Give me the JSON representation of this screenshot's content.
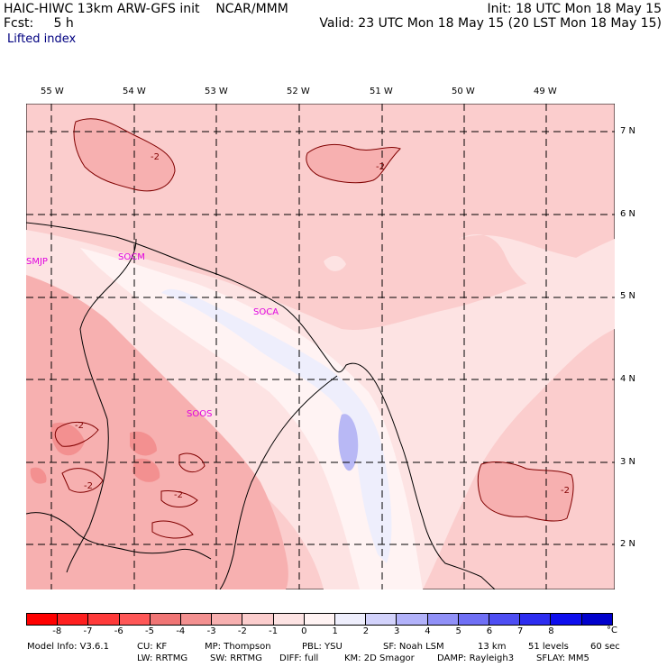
{
  "header": {
    "model": "HAIC-HIWC 13km ARW-GFS init",
    "org": "NCAR/MMM",
    "forecast_label": "Fcst:",
    "forecast_value": "5 h",
    "init": "Init: 18 UTC Mon 18 May 15",
    "valid": "Valid: 23 UTC Mon 18 May 15 (20 LST Mon 18 May 15)",
    "field": "Lifted index"
  },
  "map": {
    "lon_labels": [
      "55 W",
      "54 W",
      "53 W",
      "52 W",
      "51 W",
      "50 W",
      "49 W"
    ],
    "lat_labels": [
      "7 N",
      "6 N",
      "5 N",
      "4 N",
      "3 N",
      "2 N"
    ],
    "stations": [
      "SMJP",
      "SOCM",
      "SOCA",
      "SOOS"
    ],
    "contour_labels": [
      "-2",
      "-2",
      "-2",
      "-2",
      "-2",
      "-2"
    ]
  },
  "colorbar": {
    "colors": [
      "#ff0000",
      "#ff2020",
      "#ff3a3a",
      "#ff5757",
      "#f07575",
      "#f39090",
      "#f7b0b0",
      "#fbcdcd",
      "#fde3e3",
      "#fff3f3",
      "#eeeefc",
      "#d2d2fb",
      "#b2b2fa",
      "#9090f7",
      "#6f6ff5",
      "#4e4ef3",
      "#2d2df0",
      "#0e0eee",
      "#0000cc"
    ],
    "ticks": [
      "-8",
      "-7",
      "-6",
      "-5",
      "-4",
      "-3",
      "-2",
      "-1",
      "0",
      "1",
      "2",
      "3",
      "4",
      "5",
      "6",
      "7",
      "8"
    ],
    "unit": "°C"
  },
  "footer": {
    "line1": [
      "Model Info: V3.6.1",
      "CU: KF",
      "MP: Thompson",
      "PBL: YSU",
      "SF: Noah LSM",
      "13 km",
      "51 levels",
      "60 sec"
    ],
    "line2": [
      "LW: RRTMG",
      "SW: RRTMG",
      "DIFF: full",
      "KM: 2D Smagor",
      "DAMP: Rayleigh3",
      "SFLAY: MM5"
    ]
  }
}
